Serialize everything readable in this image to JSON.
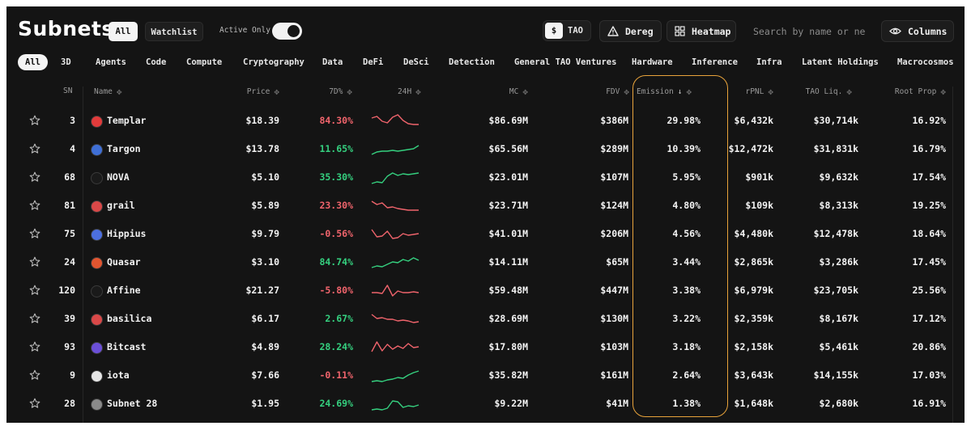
{
  "header": {
    "title": "Subnets",
    "tab_all": "All",
    "tab_watchlist": "Watchlist",
    "active_only_label": "Active Only",
    "active_only": true,
    "currency_usd": "$",
    "currency_tao": "TAO",
    "dereg_label": "Dereg",
    "heatmap_label": "Heatmap",
    "search_placeholder": "Search by name or ne",
    "columns_label": "Columns"
  },
  "categories": [
    "All",
    "3D",
    "Agents",
    "Code",
    "Compute",
    "Cryptography",
    "Data",
    "DeFi",
    "DeSci",
    "Detection",
    "General TAO Ventures",
    "Hardware",
    "Inference",
    "Infra",
    "Latent Holdings",
    "Macrocosmos"
  ],
  "columns": {
    "sn": "SN",
    "name": "Name",
    "price": "Price",
    "d7": "7D%",
    "h24": "24H",
    "mc": "MC",
    "fdv": "FDV",
    "emission": "Emission",
    "rpnl": "rPNL",
    "tao_liq": "TAO Liq.",
    "root_prop": "Root Prop"
  },
  "sort": {
    "column": "Emission",
    "direction": "descending"
  },
  "rows": [
    {
      "sn": "3",
      "name": "Templar",
      "price": "$18.39",
      "d7": "84.30%",
      "trend": "negative",
      "mc": "$86.69M",
      "fdv": "$386M",
      "emission": "29.98%",
      "rpnl": "$6,432k",
      "tao_liq": "$30,714k",
      "root_prop": "16.92%",
      "logo_color": "#e23b3b",
      "spark": [
        6,
        4,
        10,
        12,
        5,
        2,
        9,
        13,
        14,
        14
      ],
      "spark_color": "#f0646c"
    },
    {
      "sn": "4",
      "name": "Targon",
      "price": "$13.78",
      "d7": "11.65%",
      "trend": "positive",
      "mc": "$65.56M",
      "fdv": "$289M",
      "emission": "10.39%",
      "rpnl": "$12,472k",
      "tao_liq": "$31,831k",
      "root_prop": "16.79%",
      "logo_color": "#3f6fd6",
      "spark": [
        16,
        13,
        12,
        12,
        11,
        12,
        11,
        10,
        9,
        5
      ],
      "spark_color": "#35d07f"
    },
    {
      "sn": "68",
      "name": "NOVA",
      "price": "$5.10",
      "d7": "35.30%",
      "trend": "positive",
      "mc": "$23.01M",
      "fdv": "$107M",
      "emission": "5.95%",
      "rpnl": "$901k",
      "tao_liq": "$9,632k",
      "root_prop": "17.54%",
      "logo_color": "#1a1a1a",
      "spark": [
        17,
        15,
        16,
        8,
        4,
        7,
        5,
        6,
        5,
        4
      ],
      "spark_color": "#35d07f"
    },
    {
      "sn": "81",
      "name": "grail",
      "price": "$5.89",
      "d7": "23.30%",
      "trend": "negative",
      "mc": "$23.71M",
      "fdv": "$124M",
      "emission": "4.80%",
      "rpnl": "$109k",
      "tao_liq": "$8,313k",
      "root_prop": "19.25%",
      "logo_color": "#d94848",
      "spark": [
        4,
        8,
        6,
        12,
        11,
        13,
        14,
        15,
        15,
        15
      ],
      "spark_color": "#f0646c"
    },
    {
      "sn": "75",
      "name": "Hippius",
      "price": "$9.79",
      "d7": "-0.56%",
      "trend": "negative",
      "mc": "$41.01M",
      "fdv": "$206M",
      "emission": "4.56%",
      "rpnl": "$4,480k",
      "tao_liq": "$12,478k",
      "root_prop": "18.64%",
      "logo_color": "#4c6fe0",
      "spark": [
        4,
        13,
        12,
        6,
        15,
        14,
        9,
        11,
        10,
        9
      ],
      "spark_color": "#f0646c"
    },
    {
      "sn": "24",
      "name": "Quasar",
      "price": "$3.10",
      "d7": "84.74%",
      "trend": "positive",
      "mc": "$14.11M",
      "fdv": "$65M",
      "emission": "3.44%",
      "rpnl": "$2,865k",
      "tao_liq": "$3,286k",
      "root_prop": "17.45%",
      "logo_color": "#e25530",
      "spark": [
        16,
        14,
        15,
        12,
        9,
        10,
        6,
        8,
        4,
        7
      ],
      "spark_color": "#35d07f"
    },
    {
      "sn": "120",
      "name": "Affine",
      "price": "$21.27",
      "d7": "-5.80%",
      "trend": "negative",
      "mc": "$59.48M",
      "fdv": "$447M",
      "emission": "3.38%",
      "rpnl": "$6,979k",
      "tao_liq": "$23,705k",
      "root_prop": "25.56%",
      "logo_color": "#1a1a1a",
      "spark": [
        12,
        12,
        13,
        3,
        16,
        10,
        12,
        12,
        11,
        12
      ],
      "spark_color": "#f0646c"
    },
    {
      "sn": "39",
      "name": "basilica",
      "price": "$6.17",
      "d7": "2.67%",
      "trend": "positive",
      "mc": "$28.69M",
      "fdv": "$130M",
      "emission": "3.22%",
      "rpnl": "$2,359k",
      "tao_liq": "$8,167k",
      "root_prop": "17.12%",
      "logo_color": "#d94848",
      "spark": [
        4,
        9,
        8,
        10,
        10,
        12,
        11,
        12,
        14,
        13
      ],
      "spark_color": "#f0646c"
    },
    {
      "sn": "93",
      "name": "Bitcast",
      "price": "$4.89",
      "d7": "28.24%",
      "trend": "positive",
      "mc": "$17.80M",
      "fdv": "$103M",
      "emission": "3.18%",
      "rpnl": "$2,158k",
      "tao_liq": "$5,461k",
      "root_prop": "20.86%",
      "logo_color": "#6b4fd8",
      "spark": [
        15,
        3,
        14,
        6,
        12,
        8,
        11,
        5,
        10,
        9
      ],
      "spark_color": "#f0646c"
    },
    {
      "sn": "9",
      "name": "iota",
      "price": "$7.66",
      "d7": "-0.11%",
      "trend": "negative",
      "mc": "$35.82M",
      "fdv": "$161M",
      "emission": "2.64%",
      "rpnl": "$3,643k",
      "tao_liq": "$14,155k",
      "root_prop": "17.03%",
      "logo_color": "#e6e6e6",
      "spark": [
        17,
        16,
        17,
        15,
        14,
        12,
        13,
        9,
        6,
        4
      ],
      "spark_color": "#35d07f"
    },
    {
      "sn": "28",
      "name": "Subnet 28",
      "price": "$1.95",
      "d7": "24.69%",
      "trend": "positive",
      "mc": "$9.22M",
      "fdv": "$41M",
      "emission": "1.38%",
      "rpnl": "$1,648k",
      "tao_liq": "$2,680k",
      "root_prop": "16.91%",
      "logo_color": "#8a8a8a",
      "spark": [
        17,
        16,
        17,
        15,
        6,
        7,
        14,
        12,
        13,
        11
      ],
      "spark_color": "#35d07f"
    }
  ]
}
